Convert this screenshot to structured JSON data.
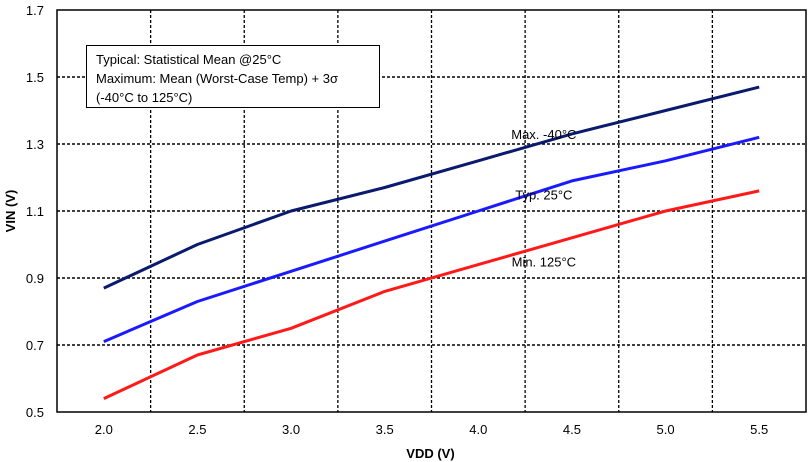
{
  "chart_data": {
    "type": "line",
    "xlabel": "VDD (V)",
    "ylabel": "VIN (V)",
    "xlim": [
      1.75,
      5.75
    ],
    "ylim": [
      0.5,
      1.7
    ],
    "x": [
      2.0,
      2.5,
      3.0,
      3.5,
      4.0,
      4.5,
      5.0,
      5.5
    ],
    "xticks": [
      "2.0",
      "2.5",
      "3.0",
      "3.5",
      "4.0",
      "4.5",
      "5.0",
      "5.5"
    ],
    "yticks": [
      "0.5",
      "0.7",
      "0.9",
      "1.1",
      "1.3",
      "1.5",
      "1.7"
    ],
    "grid": true,
    "series": [
      {
        "name": "Max. -40°C",
        "color": "#0a1a6e",
        "values": [
          0.87,
          1.0,
          1.1,
          1.17,
          1.25,
          1.33,
          1.4,
          1.47
        ],
        "label_at": [
          4.35,
          1.33
        ]
      },
      {
        "name": "Typ. 25°C",
        "color": "#1a1aff",
        "values": [
          0.71,
          0.83,
          0.92,
          1.01,
          1.1,
          1.19,
          1.25,
          1.32
        ],
        "label_at": [
          4.35,
          1.15
        ]
      },
      {
        "name": "Min. 125°C",
        "color": "#ff1a1a",
        "values": [
          0.54,
          0.67,
          0.75,
          0.86,
          0.94,
          1.02,
          1.1,
          1.16
        ],
        "label_at": [
          4.35,
          0.95
        ]
      }
    ],
    "legend": {
      "placement": "top-left",
      "lines": [
        "Typical: Statistical Mean @25°C",
        "Maximum: Mean (Worst-Case Temp) + 3σ",
        "(-40°C to 125°C)"
      ]
    }
  }
}
